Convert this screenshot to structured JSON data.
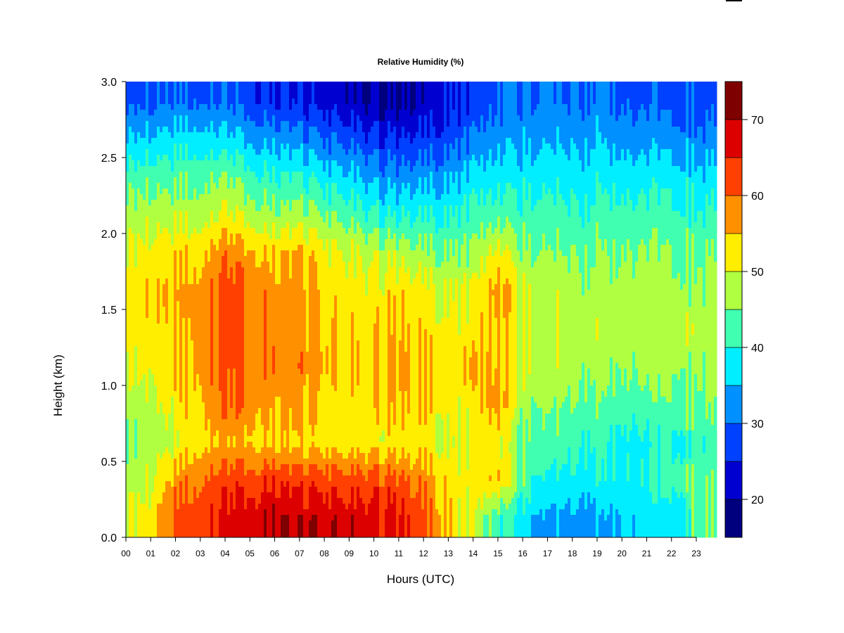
{
  "chart_data": {
    "type": "heatmap",
    "title": "Relative Humidity (%)",
    "xlabel": "Hours (UTC)",
    "ylabel": "Height (km)",
    "xlim": [
      0,
      23.85
    ],
    "ylim": [
      0,
      3.0
    ],
    "x_tick_labels": [
      "00",
      "01",
      "02",
      "03",
      "04",
      "05",
      "06",
      "07",
      "08",
      "09",
      "10",
      "11",
      "12",
      "13",
      "14",
      "15",
      "16",
      "17",
      "18",
      "19",
      "20",
      "21",
      "22",
      "23"
    ],
    "y_tick_labels": [
      "0.0",
      "0.5",
      "1.0",
      "1.5",
      "2.0",
      "2.5",
      "3.0"
    ],
    "y_ticks": [
      0,
      0.5,
      1.0,
      1.5,
      2.0,
      2.5,
      3.0
    ],
    "hours": [
      0,
      1,
      2,
      3,
      4,
      5,
      6,
      7,
      8,
      9,
      10,
      11,
      12,
      13,
      14,
      15,
      16,
      17,
      18,
      19,
      20,
      21,
      22,
      23
    ],
    "heights_km": [
      0.125,
      0.375,
      0.625,
      0.875,
      1.125,
      1.375,
      1.625,
      1.875,
      2.125,
      2.375,
      2.625,
      2.875
    ],
    "values": [
      [
        50,
        47,
        44,
        47,
        50,
        52,
        52,
        50,
        47,
        42,
        35,
        28
      ],
      [
        52,
        50,
        47,
        48,
        52,
        53,
        54,
        52,
        48,
        43,
        36,
        29
      ],
      [
        62,
        57,
        50,
        52,
        54,
        55,
        56,
        53,
        48,
        43,
        37,
        30
      ],
      [
        63,
        60,
        54,
        55,
        57,
        57,
        57,
        54,
        48,
        44,
        37,
        30
      ],
      [
        66,
        62,
        55,
        60,
        61,
        61,
        62,
        58,
        50,
        44,
        36,
        29
      ],
      [
        68,
        63,
        55,
        58,
        60,
        60,
        60,
        56,
        48,
        42,
        34,
        27
      ],
      [
        70,
        64,
        54,
        56,
        58,
        57,
        57,
        54,
        46,
        40,
        33,
        25
      ],
      [
        69,
        63,
        53,
        57,
        59,
        58,
        58,
        55,
        47,
        40,
        32,
        24
      ],
      [
        69,
        63,
        53,
        53,
        55,
        54,
        54,
        52,
        45,
        38,
        30,
        23
      ],
      [
        68,
        62,
        52,
        52,
        54,
        53,
        52,
        50,
        43,
        36,
        28,
        21
      ],
      [
        67,
        62,
        52,
        53,
        54,
        53,
        52,
        48,
        40,
        33,
        26,
        19
      ],
      [
        66,
        61,
        52,
        55,
        56,
        55,
        53,
        48,
        39,
        32,
        25,
        18
      ],
      [
        62,
        58,
        52,
        54,
        54,
        53,
        52,
        46,
        40,
        33,
        26,
        21
      ],
      [
        55,
        53,
        50,
        52,
        53,
        52,
        50,
        45,
        40,
        34,
        28,
        24
      ],
      [
        48,
        52,
        50,
        52,
        54,
        52,
        50,
        45,
        41,
        36,
        30,
        25
      ],
      [
        42,
        55,
        52,
        58,
        56,
        56,
        58,
        52,
        43,
        38,
        33,
        30
      ],
      [
        38,
        44,
        44,
        47,
        50,
        50,
        50,
        46,
        42,
        38,
        34,
        31
      ],
      [
        33,
        38,
        43,
        45,
        48,
        48,
        48,
        45,
        42,
        38,
        34,
        30
      ],
      [
        33,
        38,
        41,
        44,
        47,
        48,
        47,
        44,
        40,
        37,
        33,
        29
      ],
      [
        33,
        39,
        41,
        44,
        47,
        48,
        47,
        45,
        42,
        38,
        35,
        31
      ],
      [
        37,
        40,
        40,
        44,
        47,
        48,
        48,
        46,
        43,
        39,
        34,
        30
      ],
      [
        37,
        40,
        39,
        43,
        47,
        48,
        48,
        46,
        42,
        38,
        33,
        29
      ],
      [
        37,
        42,
        40,
        44,
        47,
        48,
        47,
        45,
        42,
        38,
        33,
        28
      ],
      [
        44,
        44,
        42,
        45,
        47,
        48,
        47,
        45,
        41,
        37,
        32,
        28
      ]
    ],
    "colorbar": {
      "levels": [
        15,
        20,
        25,
        30,
        35,
        40,
        45,
        50,
        55,
        60,
        65,
        70,
        75
      ],
      "tick_values": [
        20,
        30,
        40,
        50,
        60,
        70
      ],
      "tick_labels": [
        "20",
        "30",
        "40",
        "50",
        "60",
        "70"
      ],
      "colors": [
        "#00007F",
        "#0000D0",
        "#0040FF",
        "#0090FF",
        "#00EEFF",
        "#40FFB0",
        "#B0FF40",
        "#FFEE00",
        "#FF9000",
        "#FF4000",
        "#DD0000",
        "#7F0000"
      ]
    }
  }
}
